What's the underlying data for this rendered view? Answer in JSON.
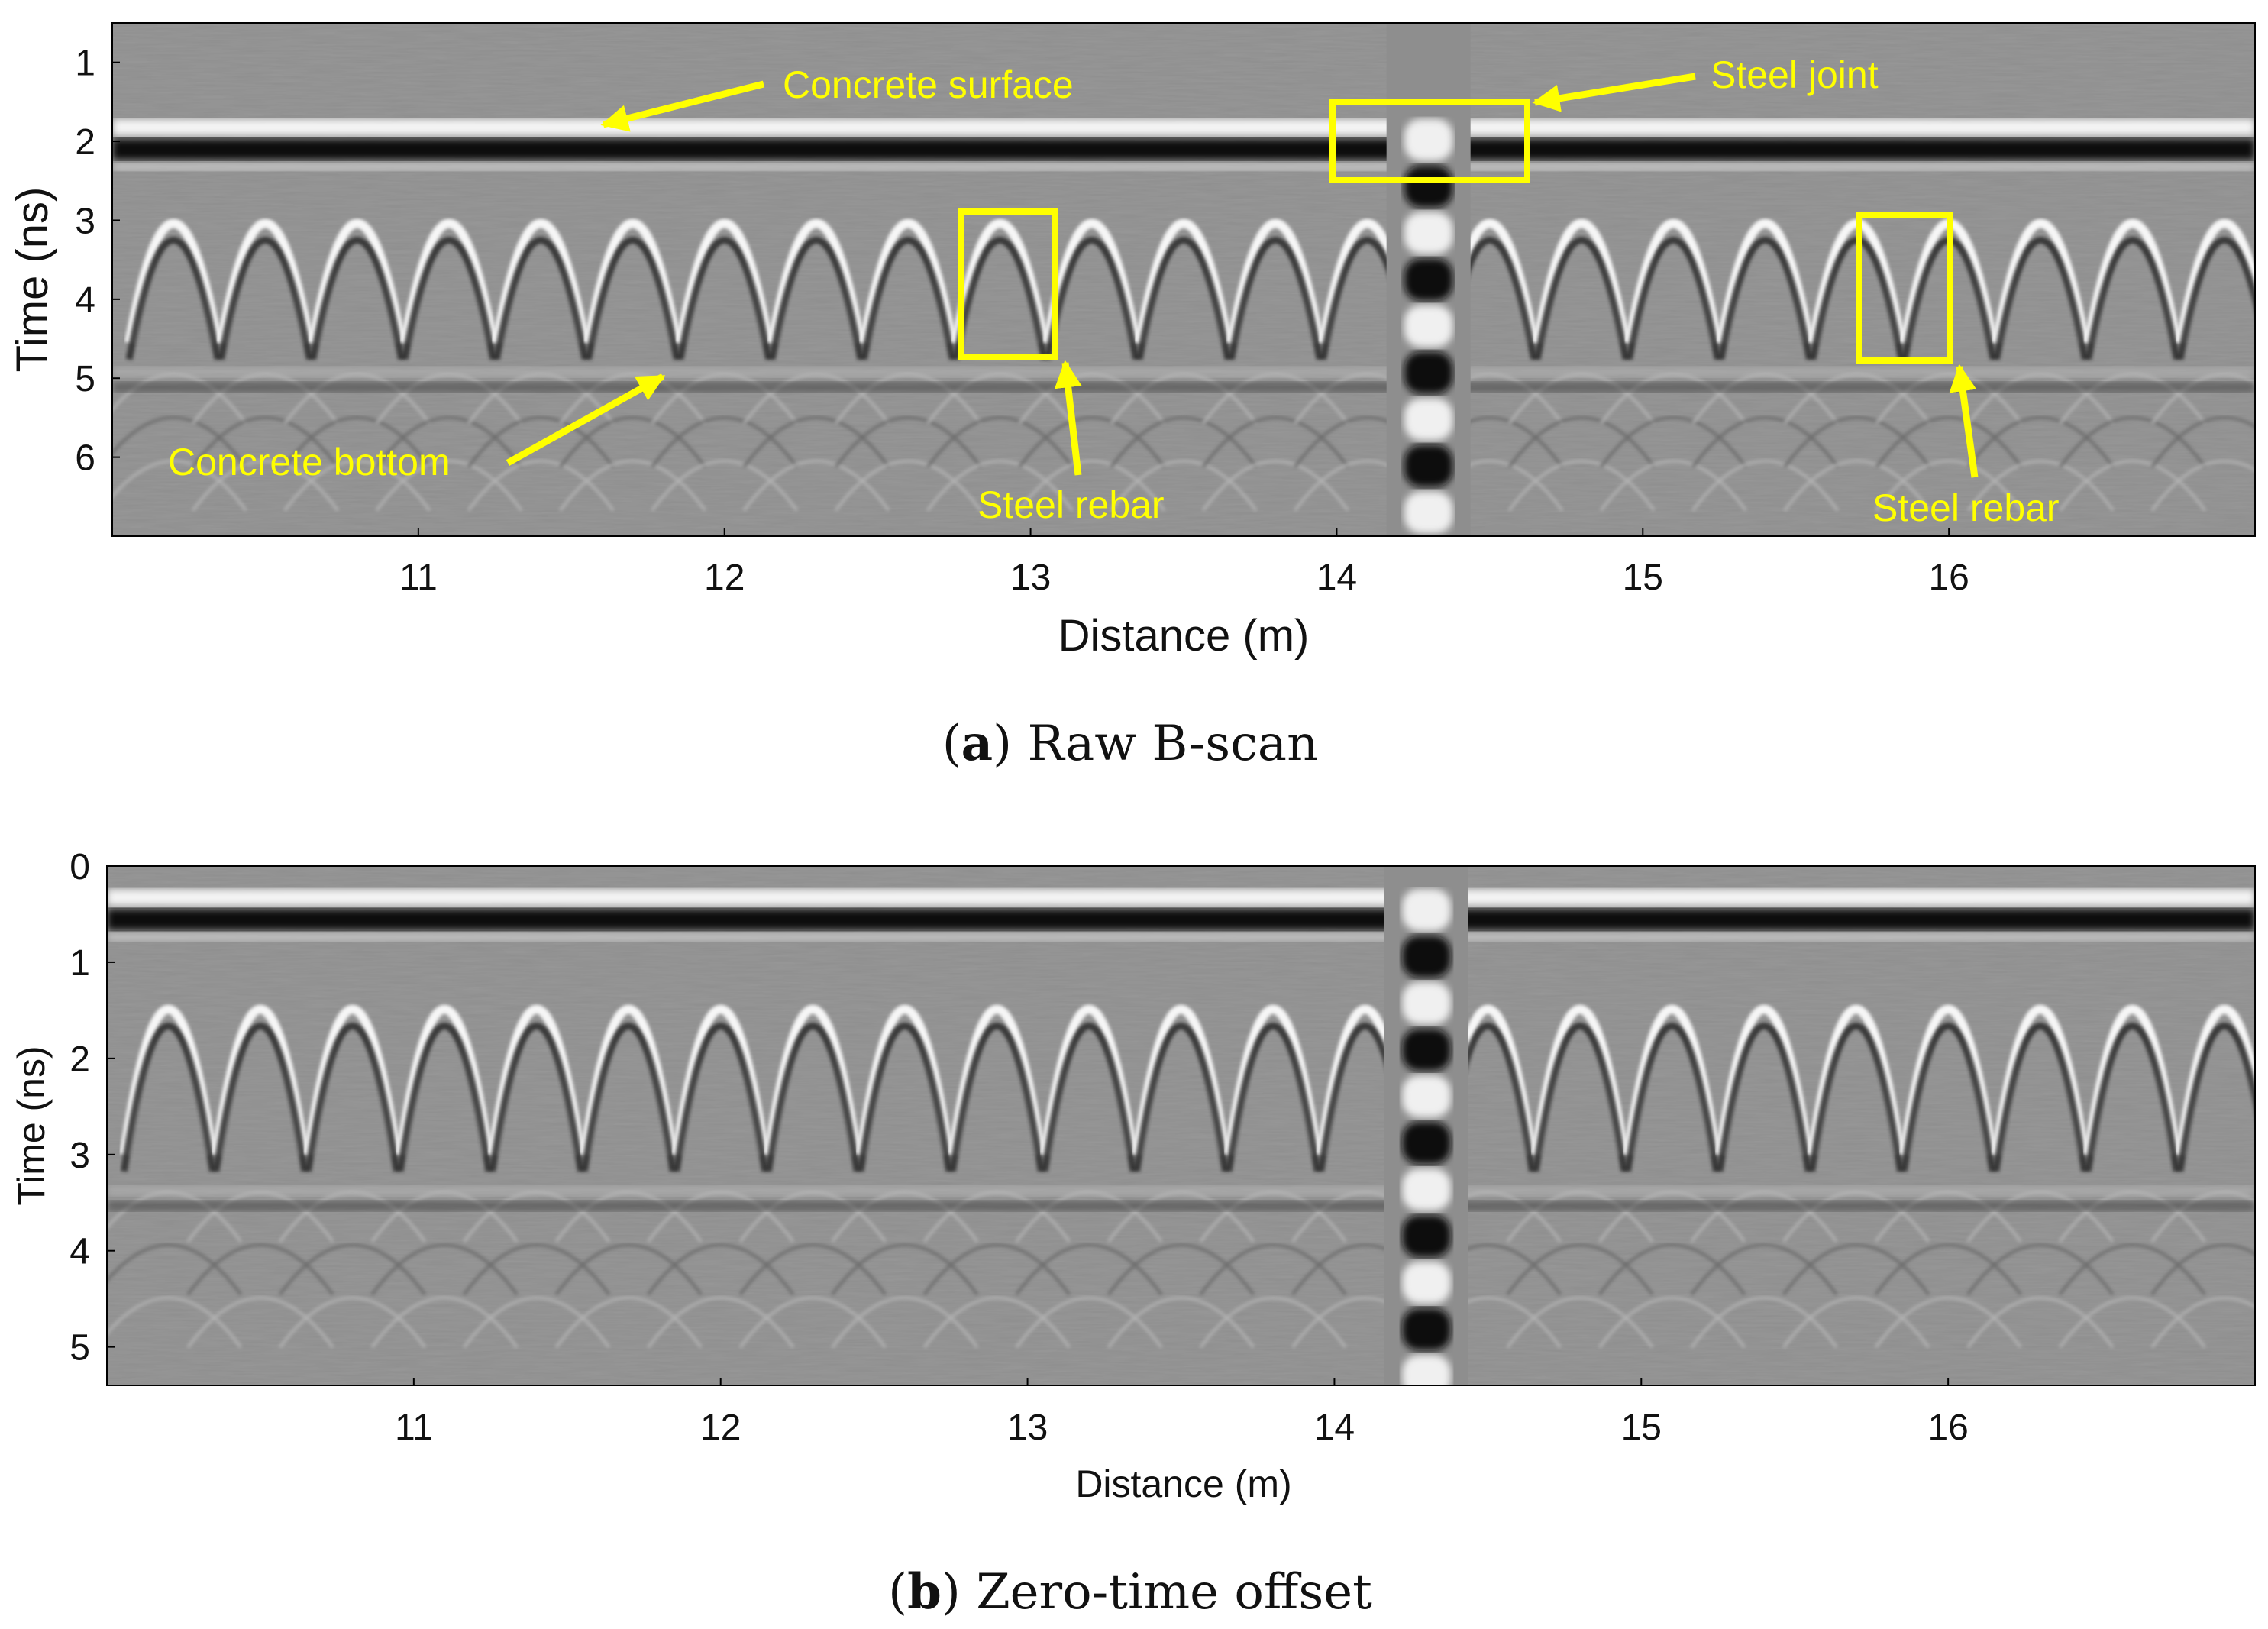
{
  "chart_data": [
    {
      "type": "heatmap",
      "panel": "a",
      "caption_letter": "a",
      "caption_text": "Raw B-scan",
      "xlabel": "Distance (m)",
      "ylabel": "Time (ns)",
      "xlim": [
        10.0,
        17.0
      ],
      "ylim": [
        0.5,
        7.0
      ],
      "xticks": [
        "11",
        "12",
        "13",
        "14",
        "15",
        "16"
      ],
      "yticks": [
        "1",
        "2",
        "3",
        "4",
        "5",
        "6"
      ],
      "surface_time": 1.85,
      "bottom_time": 4.95,
      "rebar_apex_time": 3.0,
      "joint_x": 14.3,
      "rebar_positions": [
        10.2,
        10.5,
        10.8,
        11.1,
        11.4,
        11.7,
        12.0,
        12.3,
        12.6,
        12.9,
        13.2,
        13.5,
        13.8,
        14.1,
        14.5,
        14.8,
        15.1,
        15.4,
        15.7,
        16.0,
        16.3,
        16.6,
        16.9
      ],
      "annotations": [
        {
          "text": "Concrete surface",
          "x": 11.55,
          "y": 1.85
        },
        {
          "text": "Steel joint",
          "x": 14.62,
          "y": 1.45
        },
        {
          "text": "Concrete bottom",
          "x": 11.8,
          "y": 4.95
        },
        {
          "text": "Steel rebar",
          "x": 13.1,
          "y": 4.75
        },
        {
          "text": "Steel rebar",
          "x": 16.0,
          "y": 4.75
        }
      ],
      "boxes": [
        {
          "name": "steel-joint",
          "x0": 14.0,
          "x1": 14.64,
          "y0": 1.45,
          "y1": 2.5
        },
        {
          "name": "rebar-1",
          "x0": 12.76,
          "x1": 13.09,
          "y0": 2.85,
          "y1": 4.75
        },
        {
          "name": "rebar-2",
          "x0": 15.7,
          "x1": 16.01,
          "y0": 2.9,
          "y1": 4.75
        }
      ]
    },
    {
      "type": "heatmap",
      "panel": "b",
      "caption_letter": "b",
      "caption_text": "Zero-time offset",
      "xlabel": "Distance (m)",
      "ylabel": "Time (ns)",
      "xlim": [
        10.0,
        17.0
      ],
      "ylim": [
        0.0,
        5.4
      ],
      "xticks": [
        "11",
        "12",
        "13",
        "14",
        "15",
        "16"
      ],
      "yticks": [
        "0",
        "1",
        "2",
        "3",
        "4",
        "5"
      ],
      "surface_time": 0.35,
      "bottom_time": 3.4,
      "rebar_apex_time": 1.45,
      "joint_x": 14.3,
      "rebar_positions": [
        10.2,
        10.5,
        10.8,
        11.1,
        11.4,
        11.7,
        12.0,
        12.3,
        12.6,
        12.9,
        13.2,
        13.5,
        13.8,
        14.1,
        14.5,
        14.8,
        15.1,
        15.4,
        15.7,
        16.0,
        16.3,
        16.6,
        16.9
      ]
    }
  ],
  "colors": {
    "annotation": "#ffff00",
    "background_gray": "#8e8e8e"
  }
}
